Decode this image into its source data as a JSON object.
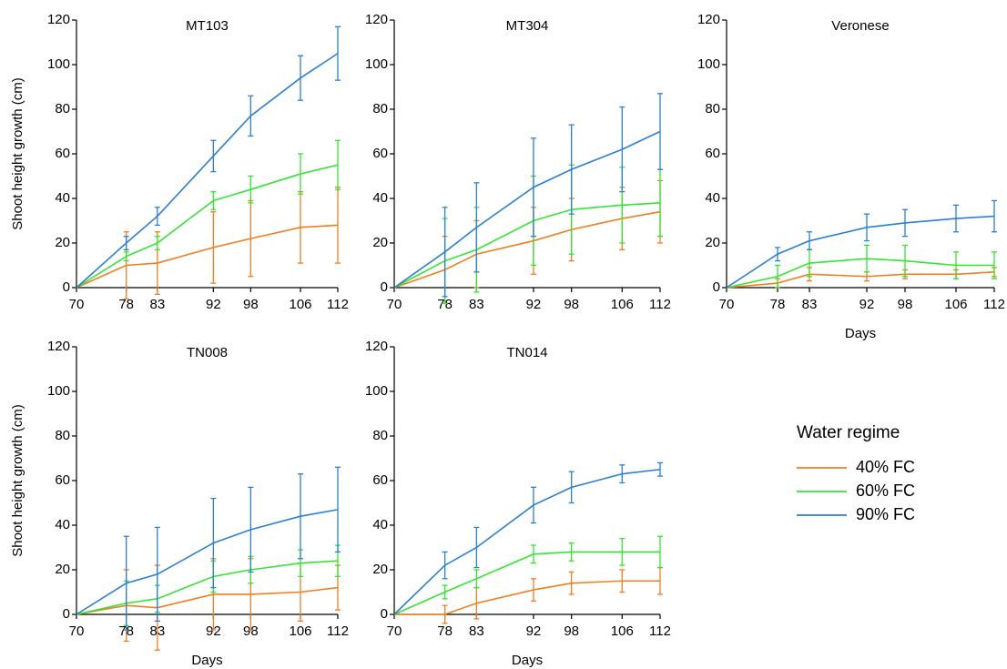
{
  "legend_title": "Water regime",
  "chart_data": [
    {
      "type": "line",
      "title": "MT103",
      "ylabel": "Shoot height growth (cm)",
      "x": [
        70,
        78,
        83,
        92,
        98,
        106,
        112
      ],
      "xlim": [
        70,
        112
      ],
      "xticks": [
        70,
        78,
        83,
        92,
        98,
        106,
        112
      ],
      "ylim": [
        0,
        120
      ],
      "yticks": [
        0,
        20,
        40,
        60,
        80,
        100,
        120
      ],
      "series": [
        {
          "name": "40% FC",
          "color": "#f07f1e",
          "values": [
            0,
            10,
            11,
            18,
            22,
            27,
            28
          ],
          "errors": [
            null,
            15,
            14,
            16,
            17,
            16,
            17
          ]
        },
        {
          "name": "60% FC",
          "color": "#33e633",
          "values": [
            0,
            14,
            20,
            39,
            44,
            51,
            55
          ],
          "errors": [
            null,
            2,
            3,
            4,
            6,
            9,
            11
          ]
        },
        {
          "name": "90% FC",
          "color": "#2a7fd6",
          "values": [
            0,
            20,
            32,
            59,
            77,
            94,
            105
          ],
          "errors": [
            null,
            3,
            4,
            7,
            9,
            10,
            12
          ]
        }
      ]
    },
    {
      "type": "line",
      "title": "MT304",
      "x": [
        70,
        78,
        83,
        92,
        98,
        106,
        112
      ],
      "xlim": [
        70,
        112
      ],
      "xticks": [
        70,
        78,
        83,
        92,
        98,
        106,
        112
      ],
      "ylim": [
        0,
        120
      ],
      "yticks": [
        0,
        20,
        40,
        60,
        80,
        100,
        120
      ],
      "series": [
        {
          "name": "40% FC",
          "color": "#f07f1e",
          "values": [
            0,
            8,
            15,
            21,
            26,
            31,
            34
          ],
          "errors": [
            null,
            15,
            15,
            15,
            14,
            14,
            14
          ]
        },
        {
          "name": "60% FC",
          "color": "#33e633",
          "values": [
            0,
            12,
            17,
            30,
            35,
            37,
            38
          ],
          "errors": [
            null,
            19,
            19,
            20,
            20,
            17,
            15
          ]
        },
        {
          "name": "90% FC",
          "color": "#2a7fd6",
          "values": [
            0,
            16,
            27,
            45,
            53,
            62,
            70
          ],
          "errors": [
            null,
            20,
            20,
            22,
            20,
            19,
            17
          ]
        }
      ]
    },
    {
      "type": "line",
      "title": "Veronese",
      "xlabel": "Days",
      "x": [
        70,
        78,
        83,
        92,
        98,
        106,
        112
      ],
      "xlim": [
        70,
        112
      ],
      "xticks": [
        70,
        78,
        83,
        92,
        98,
        106,
        112
      ],
      "ylim": [
        0,
        120
      ],
      "yticks": [
        0,
        20,
        40,
        60,
        80,
        100,
        120
      ],
      "series": [
        {
          "name": "40% FC",
          "color": "#f07f1e",
          "values": [
            0,
            2,
            6,
            5,
            6,
            6,
            7
          ],
          "errors": [
            null,
            2,
            3,
            2,
            2,
            2,
            2
          ]
        },
        {
          "name": "60% FC",
          "color": "#33e633",
          "values": [
            0,
            5,
            11,
            13,
            12,
            10,
            10
          ],
          "errors": [
            null,
            5,
            6,
            6,
            7,
            6,
            6
          ]
        },
        {
          "name": "90% FC",
          "color": "#2a7fd6",
          "values": [
            0,
            15,
            21,
            27,
            29,
            31,
            32
          ],
          "errors": [
            null,
            3,
            4,
            6,
            6,
            6,
            7
          ]
        }
      ]
    },
    {
      "type": "line",
      "title": "TN008",
      "ylabel": "Shoot height growth (cm)",
      "xlabel": "Days",
      "x": [
        70,
        78,
        83,
        92,
        98,
        106,
        112
      ],
      "xlim": [
        70,
        112
      ],
      "xticks": [
        70,
        78,
        83,
        92,
        98,
        106,
        112
      ],
      "ylim": [
        0,
        120
      ],
      "yticks": [
        0,
        20,
        40,
        60,
        80,
        100,
        120
      ],
      "series": [
        {
          "name": "40% FC",
          "color": "#f07f1e",
          "values": [
            0,
            4,
            3,
            9,
            9,
            10,
            12
          ],
          "errors": [
            null,
            16,
            19,
            16,
            16,
            13,
            10
          ]
        },
        {
          "name": "60% FC",
          "color": "#33e633",
          "values": [
            0,
            5,
            7,
            17,
            20,
            23,
            24
          ],
          "errors": [
            null,
            10,
            6,
            7,
            6,
            6,
            7
          ]
        },
        {
          "name": "90% FC",
          "color": "#2a7fd6",
          "values": [
            0,
            14,
            18,
            32,
            38,
            44,
            47
          ],
          "errors": [
            null,
            21,
            21,
            20,
            19,
            19,
            19
          ]
        }
      ]
    },
    {
      "type": "line",
      "title": "TN014",
      "xlabel": "Days",
      "x": [
        70,
        78,
        83,
        92,
        98,
        106,
        112
      ],
      "xlim": [
        70,
        112
      ],
      "xticks": [
        70,
        78,
        83,
        92,
        98,
        106,
        112
      ],
      "ylim": [
        0,
        120
      ],
      "yticks": [
        0,
        20,
        40,
        60,
        80,
        100,
        120
      ],
      "series": [
        {
          "name": "40% FC",
          "color": "#f07f1e",
          "values": [
            0,
            0,
            5,
            11,
            14,
            15,
            15
          ],
          "errors": [
            null,
            4,
            7,
            5,
            5,
            5,
            6
          ]
        },
        {
          "name": "60% FC",
          "color": "#33e633",
          "values": [
            0,
            10,
            16,
            27,
            28,
            28,
            28
          ],
          "errors": [
            null,
            3,
            4,
            4,
            4,
            6,
            7
          ]
        },
        {
          "name": "90% FC",
          "color": "#2a7fd6",
          "values": [
            0,
            22,
            30,
            49,
            57,
            63,
            65
          ],
          "errors": [
            null,
            6,
            9,
            8,
            7,
            4,
            3
          ]
        }
      ]
    }
  ]
}
